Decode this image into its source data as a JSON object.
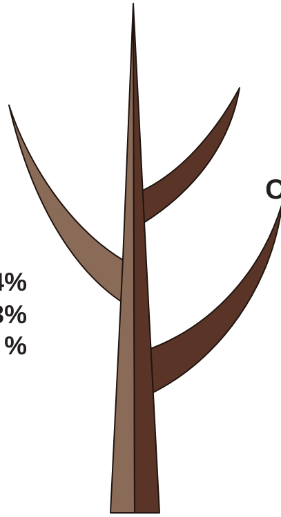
{
  "colors": {
    "light_side": "#8a6b58",
    "dark_side": "#5a3527",
    "outline": "#1f1410",
    "text": "#231f20"
  },
  "text_fragments": {
    "top": "C",
    "line_1": "4%",
    "line_2": "3%",
    "line_3": "%"
  },
  "illustration": {
    "name": "tree-icon"
  }
}
